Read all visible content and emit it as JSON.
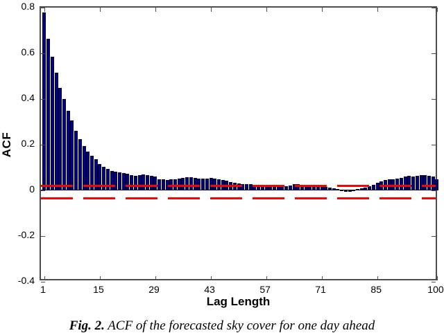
{
  "figure": {
    "caption_prefix": "Fig. 2.",
    "caption_text": " ACF of the forecasted sky cover for one day ahead"
  },
  "chart_data": {
    "type": "bar",
    "title": "",
    "xlabel": "Lag Length",
    "ylabel": "ACF",
    "xlim": [
      0,
      101
    ],
    "ylim": [
      -0.4,
      0.8
    ],
    "xticks": [
      1,
      15,
      29,
      43,
      57,
      71,
      85,
      100
    ],
    "xtick_labels": [
      "1",
      "15",
      "29",
      "43",
      "57",
      "71",
      "85",
      "100"
    ],
    "yticks": [
      0.8,
      0.6,
      0.4,
      0.2,
      0,
      -0.2,
      -0.4
    ],
    "ytick_labels": [
      "0.8",
      "0.6",
      "0.4",
      "0.2",
      "0",
      "-0.2",
      "-0.4"
    ],
    "grid": false,
    "legend": "none",
    "bar_color": "#00008B",
    "bar_edge_color": "#000020",
    "axis_color": "#4d4d4d",
    "confidence_lines": {
      "upper": 0.02,
      "lower": -0.02,
      "color": "#FF0000",
      "style": "long-dashed"
    },
    "x": [
      1,
      2,
      3,
      4,
      5,
      6,
      7,
      8,
      9,
      10,
      11,
      12,
      13,
      14,
      15,
      16,
      17,
      18,
      19,
      20,
      21,
      22,
      23,
      24,
      25,
      26,
      27,
      28,
      29,
      30,
      31,
      32,
      33,
      34,
      35,
      36,
      37,
      38,
      39,
      40,
      41,
      42,
      43,
      44,
      45,
      46,
      47,
      48,
      49,
      50,
      51,
      52,
      53,
      54,
      55,
      56,
      57,
      58,
      59,
      60,
      61,
      62,
      63,
      64,
      65,
      66,
      67,
      68,
      69,
      70,
      71,
      72,
      73,
      74,
      75,
      76,
      77,
      78,
      79,
      80,
      81,
      82,
      83,
      84,
      85,
      86,
      87,
      88,
      89,
      90,
      91,
      92,
      93,
      94,
      95,
      96,
      97,
      98,
      99,
      100
    ],
    "values": [
      0.78,
      0.665,
      0.585,
      0.515,
      0.45,
      0.4,
      0.35,
      0.305,
      0.26,
      0.225,
      0.195,
      0.17,
      0.152,
      0.136,
      0.115,
      0.104,
      0.093,
      0.086,
      0.081,
      0.079,
      0.077,
      0.074,
      0.068,
      0.064,
      0.066,
      0.07,
      0.067,
      0.064,
      0.061,
      0.05,
      0.047,
      0.046,
      0.048,
      0.049,
      0.052,
      0.055,
      0.057,
      0.058,
      0.056,
      0.053,
      0.051,
      0.052,
      0.054,
      0.051,
      0.048,
      0.046,
      0.043,
      0.037,
      0.033,
      0.03,
      0.028,
      0.027,
      0.026,
      0.025,
      0.024,
      0.022,
      0.021,
      0.021,
      0.022,
      0.022,
      0.02,
      0.019,
      0.022,
      0.026,
      0.027,
      0.024,
      0.022,
      0.021,
      0.019,
      0.017,
      0.015,
      0.014,
      0.012,
      0.01,
      0.007,
      0.003,
      0.001,
      0.001,
      0.002,
      0.005,
      0.009,
      0.013,
      0.017,
      0.025,
      0.034,
      0.04,
      0.044,
      0.047,
      0.05,
      0.053,
      0.056,
      0.06,
      0.063,
      0.062,
      0.064,
      0.066,
      0.067,
      0.065,
      0.06,
      0.05
    ]
  }
}
